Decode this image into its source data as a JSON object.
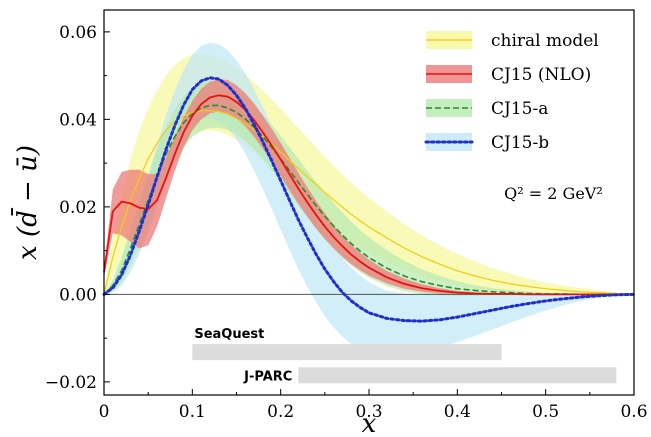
{
  "chart_data": {
    "type": "line",
    "xlabel": "x",
    "ylabel": "x (d̄ − ū)",
    "xlim": [
      0,
      0.6
    ],
    "ylim": [
      -0.023,
      0.065
    ],
    "xticks": [
      "0",
      "0.1",
      "0.2",
      "0.3",
      "0.4",
      "0.5",
      "0.6"
    ],
    "xtick_values": [
      0,
      0.1,
      0.2,
      0.3,
      0.4,
      0.5,
      0.6
    ],
    "yticks": [
      "−0.02",
      "0.00",
      "0.02",
      "0.04",
      "0.06"
    ],
    "ytick_values": [
      -0.02,
      0.0,
      0.02,
      0.04,
      0.06
    ],
    "grid": false,
    "legend_position": "top-right",
    "annotation": "Q² = 2 GeV²",
    "annotation_pos": [
      0.47,
      0.023
    ],
    "x": [
      0,
      0.01,
      0.02,
      0.03,
      0.04,
      0.05,
      0.06,
      0.07,
      0.08,
      0.09,
      0.1,
      0.11,
      0.12,
      0.13,
      0.14,
      0.15,
      0.16,
      0.17,
      0.18,
      0.19,
      0.2,
      0.21,
      0.22,
      0.23,
      0.24,
      0.25,
      0.26,
      0.27,
      0.28,
      0.29,
      0.3,
      0.32,
      0.34,
      0.36,
      0.38,
      0.4,
      0.42,
      0.44,
      0.46,
      0.48,
      0.5,
      0.52,
      0.54,
      0.56,
      0.58,
      0.6
    ],
    "series": [
      {
        "name": "chiral model",
        "style": "solid",
        "color": "#f2cc0c",
        "band_color": "#f7f79a",
        "values": [
          0,
          0.0085,
          0.0155,
          0.0215,
          0.0265,
          0.031,
          0.0345,
          0.0375,
          0.0395,
          0.0408,
          0.0416,
          0.042,
          0.042,
          0.0418,
          0.0412,
          0.0402,
          0.039,
          0.0376,
          0.036,
          0.0343,
          0.0325,
          0.0306,
          0.0288,
          0.0269,
          0.0251,
          0.0233,
          0.0216,
          0.0199,
          0.0183,
          0.0168,
          0.0154,
          0.0129,
          0.0106,
          0.0086,
          0.0069,
          0.0054,
          0.0042,
          0.0032,
          0.0024,
          0.0018,
          0.0013,
          0.0009,
          0.0006,
          0.0004,
          0.0002,
          0.0001
        ],
        "band_lower": [
          0,
          0.004,
          0.008,
          0.0125,
          0.0165,
          0.021,
          0.025,
          0.029,
          0.0325,
          0.035,
          0.0365,
          0.0372,
          0.0375,
          0.0372,
          0.0365,
          0.0353,
          0.034,
          0.0323,
          0.0305,
          0.0285,
          0.0265,
          0.0245,
          0.0225,
          0.0205,
          0.0186,
          0.0168,
          0.0151,
          0.0135,
          0.012,
          0.0106,
          0.0094,
          0.0073,
          0.0055,
          0.0041,
          0.003,
          0.0021,
          0.0014,
          0.0009,
          0.0006,
          0.0004,
          0.0002,
          0.0001,
          0.0001,
          0,
          0,
          0
        ],
        "band_upper": [
          0,
          0.013,
          0.023,
          0.031,
          0.0375,
          0.0425,
          0.0465,
          0.05,
          0.0525,
          0.054,
          0.0548,
          0.055,
          0.0548,
          0.0542,
          0.0532,
          0.0518,
          0.0502,
          0.0484,
          0.0465,
          0.0445,
          0.0424,
          0.0402,
          0.038,
          0.0358,
          0.0336,
          0.0315,
          0.0294,
          0.0274,
          0.0255,
          0.0237,
          0.022,
          0.0189,
          0.016,
          0.0134,
          0.0112,
          0.0092,
          0.0075,
          0.006,
          0.0047,
          0.0036,
          0.0027,
          0.002,
          0.0014,
          0.0009,
          0.0005,
          0.0002
        ]
      },
      {
        "name": "CJ15 (NLO)",
        "style": "solid",
        "color": "#e8110f",
        "band_color": "#ec7b78",
        "values": [
          0.005,
          0.019,
          0.0212,
          0.0208,
          0.0198,
          0.0195,
          0.0215,
          0.0265,
          0.032,
          0.037,
          0.0408,
          0.0435,
          0.045,
          0.0455,
          0.0452,
          0.044,
          0.0422,
          0.0398,
          0.037,
          0.034,
          0.0308,
          0.0275,
          0.0242,
          0.0211,
          0.0182,
          0.0155,
          0.0131,
          0.011,
          0.0091,
          0.0075,
          0.0061,
          0.0039,
          0.0024,
          0.0014,
          0.0008,
          0.0004,
          0.0002,
          0.0001,
          0.0001,
          0,
          0,
          0,
          0,
          0,
          0,
          0
        ],
        "band_lower": [
          0.004,
          0.014,
          0.0135,
          0.012,
          0.0105,
          0.0112,
          0.0155,
          0.0218,
          0.0282,
          0.0335,
          0.0375,
          0.04,
          0.0414,
          0.0418,
          0.0414,
          0.0402,
          0.0384,
          0.036,
          0.0332,
          0.0302,
          0.027,
          0.0238,
          0.0207,
          0.0178,
          0.0151,
          0.0127,
          0.0105,
          0.0086,
          0.0069,
          0.0055,
          0.0043,
          0.0025,
          0.0013,
          0.0006,
          0.0002,
          0.0001,
          0,
          0,
          0,
          0,
          0,
          0,
          0,
          0,
          0,
          0
        ],
        "band_upper": [
          0.006,
          0.024,
          0.028,
          0.0285,
          0.0285,
          0.0275,
          0.0275,
          0.0312,
          0.036,
          0.0405,
          0.0442,
          0.047,
          0.0486,
          0.0492,
          0.049,
          0.0478,
          0.046,
          0.0436,
          0.0408,
          0.0378,
          0.0346,
          0.0312,
          0.0278,
          0.0245,
          0.0214,
          0.0185,
          0.0158,
          0.0134,
          0.0113,
          0.0095,
          0.0079,
          0.0054,
          0.0036,
          0.0023,
          0.0014,
          0.0008,
          0.0005,
          0.0003,
          0.0002,
          0.0001,
          0.0001,
          0,
          0,
          0,
          0,
          0
        ]
      },
      {
        "name": "CJ15-a",
        "style": "dashed",
        "color": "#2b8a2b",
        "band_color": "#b6eab0",
        "values": [
          0,
          0.002,
          0.0055,
          0.0105,
          0.016,
          0.0215,
          0.027,
          0.032,
          0.036,
          0.0392,
          0.0413,
          0.0426,
          0.0432,
          0.0432,
          0.0426,
          0.0416,
          0.0401,
          0.0382,
          0.036,
          0.0336,
          0.031,
          0.0283,
          0.0256,
          0.0229,
          0.0203,
          0.0179,
          0.0156,
          0.0135,
          0.0116,
          0.0099,
          0.0084,
          0.006,
          0.0042,
          0.0029,
          0.002,
          0.0013,
          0.0009,
          0.0006,
          0.0004,
          0.0002,
          0.0001,
          0.0001,
          0,
          0,
          0,
          0
        ],
        "band_lower": [
          0,
          0.0008,
          0.0028,
          0.0065,
          0.011,
          0.016,
          0.021,
          0.026,
          0.0302,
          0.0335,
          0.036,
          0.0374,
          0.0381,
          0.0381,
          0.0376,
          0.0366,
          0.0351,
          0.0332,
          0.031,
          0.0285,
          0.0258,
          0.023,
          0.0202,
          0.0175,
          0.0149,
          0.0125,
          0.0103,
          0.0083,
          0.0066,
          0.0051,
          0.0038,
          0.0019,
          0.0007,
          0.0001,
          -0.0002,
          -0.0003,
          -0.0003,
          -0.0002,
          -0.0002,
          -0.0001,
          -0.0001,
          0,
          0,
          0,
          0,
          0
        ],
        "band_upper": [
          0,
          0.0035,
          0.0085,
          0.0148,
          0.0212,
          0.0272,
          0.033,
          0.0382,
          0.0422,
          0.0452,
          0.0472,
          0.0484,
          0.0488,
          0.0486,
          0.0478,
          0.0466,
          0.045,
          0.0431,
          0.041,
          0.0387,
          0.0362,
          0.0336,
          0.031,
          0.0283,
          0.0257,
          0.0233,
          0.0209,
          0.0187,
          0.0166,
          0.0147,
          0.013,
          0.0101,
          0.0077,
          0.0057,
          0.0042,
          0.003,
          0.0021,
          0.0014,
          0.001,
          0.0006,
          0.0004,
          0.0002,
          0.0001,
          0.0001,
          0,
          0
        ]
      },
      {
        "name": "CJ15-b",
        "style": "dotted",
        "color": "#1f2ecf",
        "band_color": "#bfe7f7",
        "values": [
          0,
          0.0015,
          0.0045,
          0.009,
          0.0145,
          0.0205,
          0.0268,
          0.033,
          0.0385,
          0.0432,
          0.0468,
          0.0488,
          0.0495,
          0.0492,
          0.0478,
          0.0455,
          0.0425,
          0.0388,
          0.0348,
          0.0305,
          0.026,
          0.0215,
          0.0171,
          0.013,
          0.0092,
          0.0058,
          0.0029,
          0.0004,
          -0.0015,
          -0.003,
          -0.0042,
          -0.0055,
          -0.006,
          -0.0061,
          -0.0058,
          -0.0052,
          -0.0044,
          -0.0036,
          -0.0028,
          -0.0021,
          -0.0015,
          -0.001,
          -0.0006,
          -0.0003,
          -0.0001,
          0
        ],
        "band_lower": [
          0,
          0.0005,
          0.002,
          0.005,
          0.0092,
          0.0142,
          0.0198,
          0.0255,
          0.0306,
          0.0348,
          0.038,
          0.0398,
          0.0402,
          0.0396,
          0.038,
          0.0355,
          0.0322,
          0.0283,
          0.024,
          0.0195,
          0.0148,
          0.0102,
          0.0058,
          0.0018,
          -0.0018,
          -0.005,
          -0.0076,
          -0.0097,
          -0.0113,
          -0.0124,
          -0.0131,
          -0.0137,
          -0.0136,
          -0.013,
          -0.0121,
          -0.0109,
          -0.0095,
          -0.008,
          -0.0065,
          -0.005,
          -0.0037,
          -0.0025,
          -0.0015,
          -0.0008,
          -0.0003,
          0
        ],
        "band_upper": [
          0,
          0.0028,
          0.0075,
          0.0135,
          0.0202,
          0.0272,
          0.0342,
          0.0408,
          0.0465,
          0.0512,
          0.0548,
          0.0568,
          0.0575,
          0.0572,
          0.0558,
          0.0535,
          0.0505,
          0.0468,
          0.0428,
          0.0385,
          0.0341,
          0.0296,
          0.0252,
          0.0211,
          0.0173,
          0.0139,
          0.0109,
          0.0083,
          0.0061,
          0.0043,
          0.0028,
          0.0008,
          0.0001,
          0,
          0.0001,
          0.0002,
          0.0003,
          0.0004,
          0.0004,
          0.0004,
          0.0003,
          0.0003,
          0.0002,
          0.0001,
          0.0001,
          0
        ]
      }
    ],
    "coverage": [
      {
        "name": "SeaQuest",
        "x_range": [
          0.1,
          0.45
        ],
        "y": -0.0132
      },
      {
        "name": "J-PARC",
        "x_range": [
          0.22,
          0.58
        ],
        "y": -0.0185
      }
    ]
  }
}
